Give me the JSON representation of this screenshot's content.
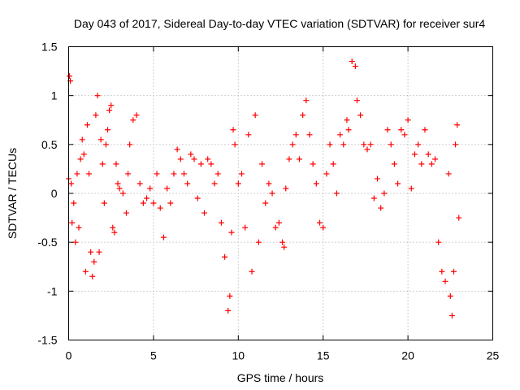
{
  "chart_data": {
    "type": "scatter",
    "title": "Day 043 of 2017, Sidereal Day-to-day VTEC variation (SDTVAR) for receiver sur4",
    "xlabel": "GPS time / hours",
    "ylabel": "SDTVAR / TECUs",
    "xlim": [
      0,
      25
    ],
    "ylim": [
      -1.5,
      1.5
    ],
    "xticks": [
      0,
      5,
      10,
      15,
      20,
      25
    ],
    "xtick_labels": [
      "0",
      "5",
      "10",
      "15",
      "20",
      "25"
    ],
    "yticks": [
      -1.5,
      -1,
      -0.5,
      0,
      0.5,
      1,
      1.5
    ],
    "ytick_labels": [
      "-1.5",
      "-1",
      "-0.5",
      "0",
      "0.5",
      "1",
      "1.5"
    ],
    "grid": true,
    "marker": "+",
    "color": "#ff0000",
    "series": [
      {
        "name": "sur4",
        "points": [
          [
            0.0,
            0.15
          ],
          [
            0.05,
            1.2
          ],
          [
            0.1,
            1.15
          ],
          [
            0.15,
            0.1
          ],
          [
            0.2,
            -0.3
          ],
          [
            0.3,
            -0.1
          ],
          [
            0.4,
            -0.5
          ],
          [
            0.5,
            0.2
          ],
          [
            0.6,
            -0.35
          ],
          [
            0.7,
            0.35
          ],
          [
            0.8,
            0.55
          ],
          [
            0.9,
            0.4
          ],
          [
            1.0,
            -0.8
          ],
          [
            1.1,
            0.7
          ],
          [
            1.2,
            0.2
          ],
          [
            1.3,
            -0.6
          ],
          [
            1.4,
            -0.85
          ],
          [
            1.5,
            -0.7
          ],
          [
            1.6,
            0.8
          ],
          [
            1.7,
            1.0
          ],
          [
            1.8,
            -0.6
          ],
          [
            1.9,
            0.55
          ],
          [
            2.0,
            0.3
          ],
          [
            2.1,
            -0.1
          ],
          [
            2.2,
            0.5
          ],
          [
            2.3,
            0.65
          ],
          [
            2.4,
            0.85
          ],
          [
            2.5,
            0.9
          ],
          [
            2.6,
            -0.35
          ],
          [
            2.7,
            -0.4
          ],
          [
            2.8,
            0.3
          ],
          [
            2.9,
            0.1
          ],
          [
            3.0,
            0.05
          ],
          [
            3.2,
            0.0
          ],
          [
            3.4,
            -0.2
          ],
          [
            3.5,
            0.2
          ],
          [
            3.6,
            0.5
          ],
          [
            3.8,
            0.75
          ],
          [
            4.0,
            0.8
          ],
          [
            4.2,
            0.1
          ],
          [
            4.4,
            -0.1
          ],
          [
            4.6,
            -0.05
          ],
          [
            4.8,
            0.05
          ],
          [
            5.0,
            -0.1
          ],
          [
            5.2,
            0.2
          ],
          [
            5.4,
            -0.15
          ],
          [
            5.6,
            -0.45
          ],
          [
            5.8,
            0.05
          ],
          [
            6.0,
            -0.1
          ],
          [
            6.2,
            0.2
          ],
          [
            6.4,
            0.45
          ],
          [
            6.6,
            0.35
          ],
          [
            6.8,
            0.2
          ],
          [
            7.0,
            0.1
          ],
          [
            7.2,
            0.4
          ],
          [
            7.4,
            0.35
          ],
          [
            7.6,
            -0.05
          ],
          [
            7.8,
            0.3
          ],
          [
            8.0,
            -0.2
          ],
          [
            8.2,
            0.35
          ],
          [
            8.4,
            0.3
          ],
          [
            8.6,
            0.1
          ],
          [
            8.8,
            0.2
          ],
          [
            9.0,
            -0.3
          ],
          [
            9.2,
            -0.65
          ],
          [
            9.4,
            -1.2
          ],
          [
            9.5,
            -1.05
          ],
          [
            9.6,
            -0.4
          ],
          [
            9.7,
            0.65
          ],
          [
            9.8,
            0.5
          ],
          [
            10.0,
            0.1
          ],
          [
            10.2,
            0.2
          ],
          [
            10.4,
            -0.35
          ],
          [
            10.6,
            0.6
          ],
          [
            10.8,
            -0.8
          ],
          [
            11.0,
            0.8
          ],
          [
            11.2,
            -0.5
          ],
          [
            11.4,
            0.3
          ],
          [
            11.6,
            -0.1
          ],
          [
            11.8,
            0.1
          ],
          [
            12.0,
            0.0
          ],
          [
            12.2,
            -0.35
          ],
          [
            12.4,
            -0.3
          ],
          [
            12.6,
            -0.5
          ],
          [
            12.7,
            -0.55
          ],
          [
            12.8,
            0.05
          ],
          [
            13.0,
            0.35
          ],
          [
            13.2,
            0.5
          ],
          [
            13.4,
            0.6
          ],
          [
            13.6,
            0.35
          ],
          [
            13.8,
            0.8
          ],
          [
            14.0,
            0.95
          ],
          [
            14.2,
            0.6
          ],
          [
            14.4,
            0.3
          ],
          [
            14.6,
            0.1
          ],
          [
            14.8,
            -0.3
          ],
          [
            15.0,
            -0.35
          ],
          [
            15.2,
            0.2
          ],
          [
            15.4,
            0.5
          ],
          [
            15.6,
            0.3
          ],
          [
            15.8,
            0.0
          ],
          [
            16.0,
            0.6
          ],
          [
            16.2,
            0.5
          ],
          [
            16.4,
            0.75
          ],
          [
            16.5,
            0.65
          ],
          [
            16.7,
            1.35
          ],
          [
            16.9,
            1.3
          ],
          [
            17.0,
            0.95
          ],
          [
            17.2,
            0.8
          ],
          [
            17.4,
            0.5
          ],
          [
            17.6,
            0.45
          ],
          [
            17.8,
            0.5
          ],
          [
            18.0,
            -0.05
          ],
          [
            18.2,
            0.15
          ],
          [
            18.4,
            -0.15
          ],
          [
            18.6,
            0.0
          ],
          [
            18.8,
            0.65
          ],
          [
            19.0,
            0.5
          ],
          [
            19.2,
            0.3
          ],
          [
            19.4,
            0.1
          ],
          [
            19.6,
            0.65
          ],
          [
            19.8,
            0.6
          ],
          [
            20.0,
            0.75
          ],
          [
            20.2,
            0.05
          ],
          [
            20.4,
            0.4
          ],
          [
            20.6,
            0.5
          ],
          [
            20.8,
            0.3
          ],
          [
            21.0,
            0.65
          ],
          [
            21.2,
            0.4
          ],
          [
            21.4,
            0.3
          ],
          [
            21.6,
            0.35
          ],
          [
            21.8,
            -0.5
          ],
          [
            22.0,
            -0.8
          ],
          [
            22.2,
            -0.9
          ],
          [
            22.4,
            0.2
          ],
          [
            22.5,
            -1.05
          ],
          [
            22.6,
            -1.25
          ],
          [
            22.7,
            -0.8
          ],
          [
            22.8,
            0.5
          ],
          [
            22.9,
            0.7
          ],
          [
            23.0,
            -0.25
          ]
        ]
      }
    ]
  }
}
